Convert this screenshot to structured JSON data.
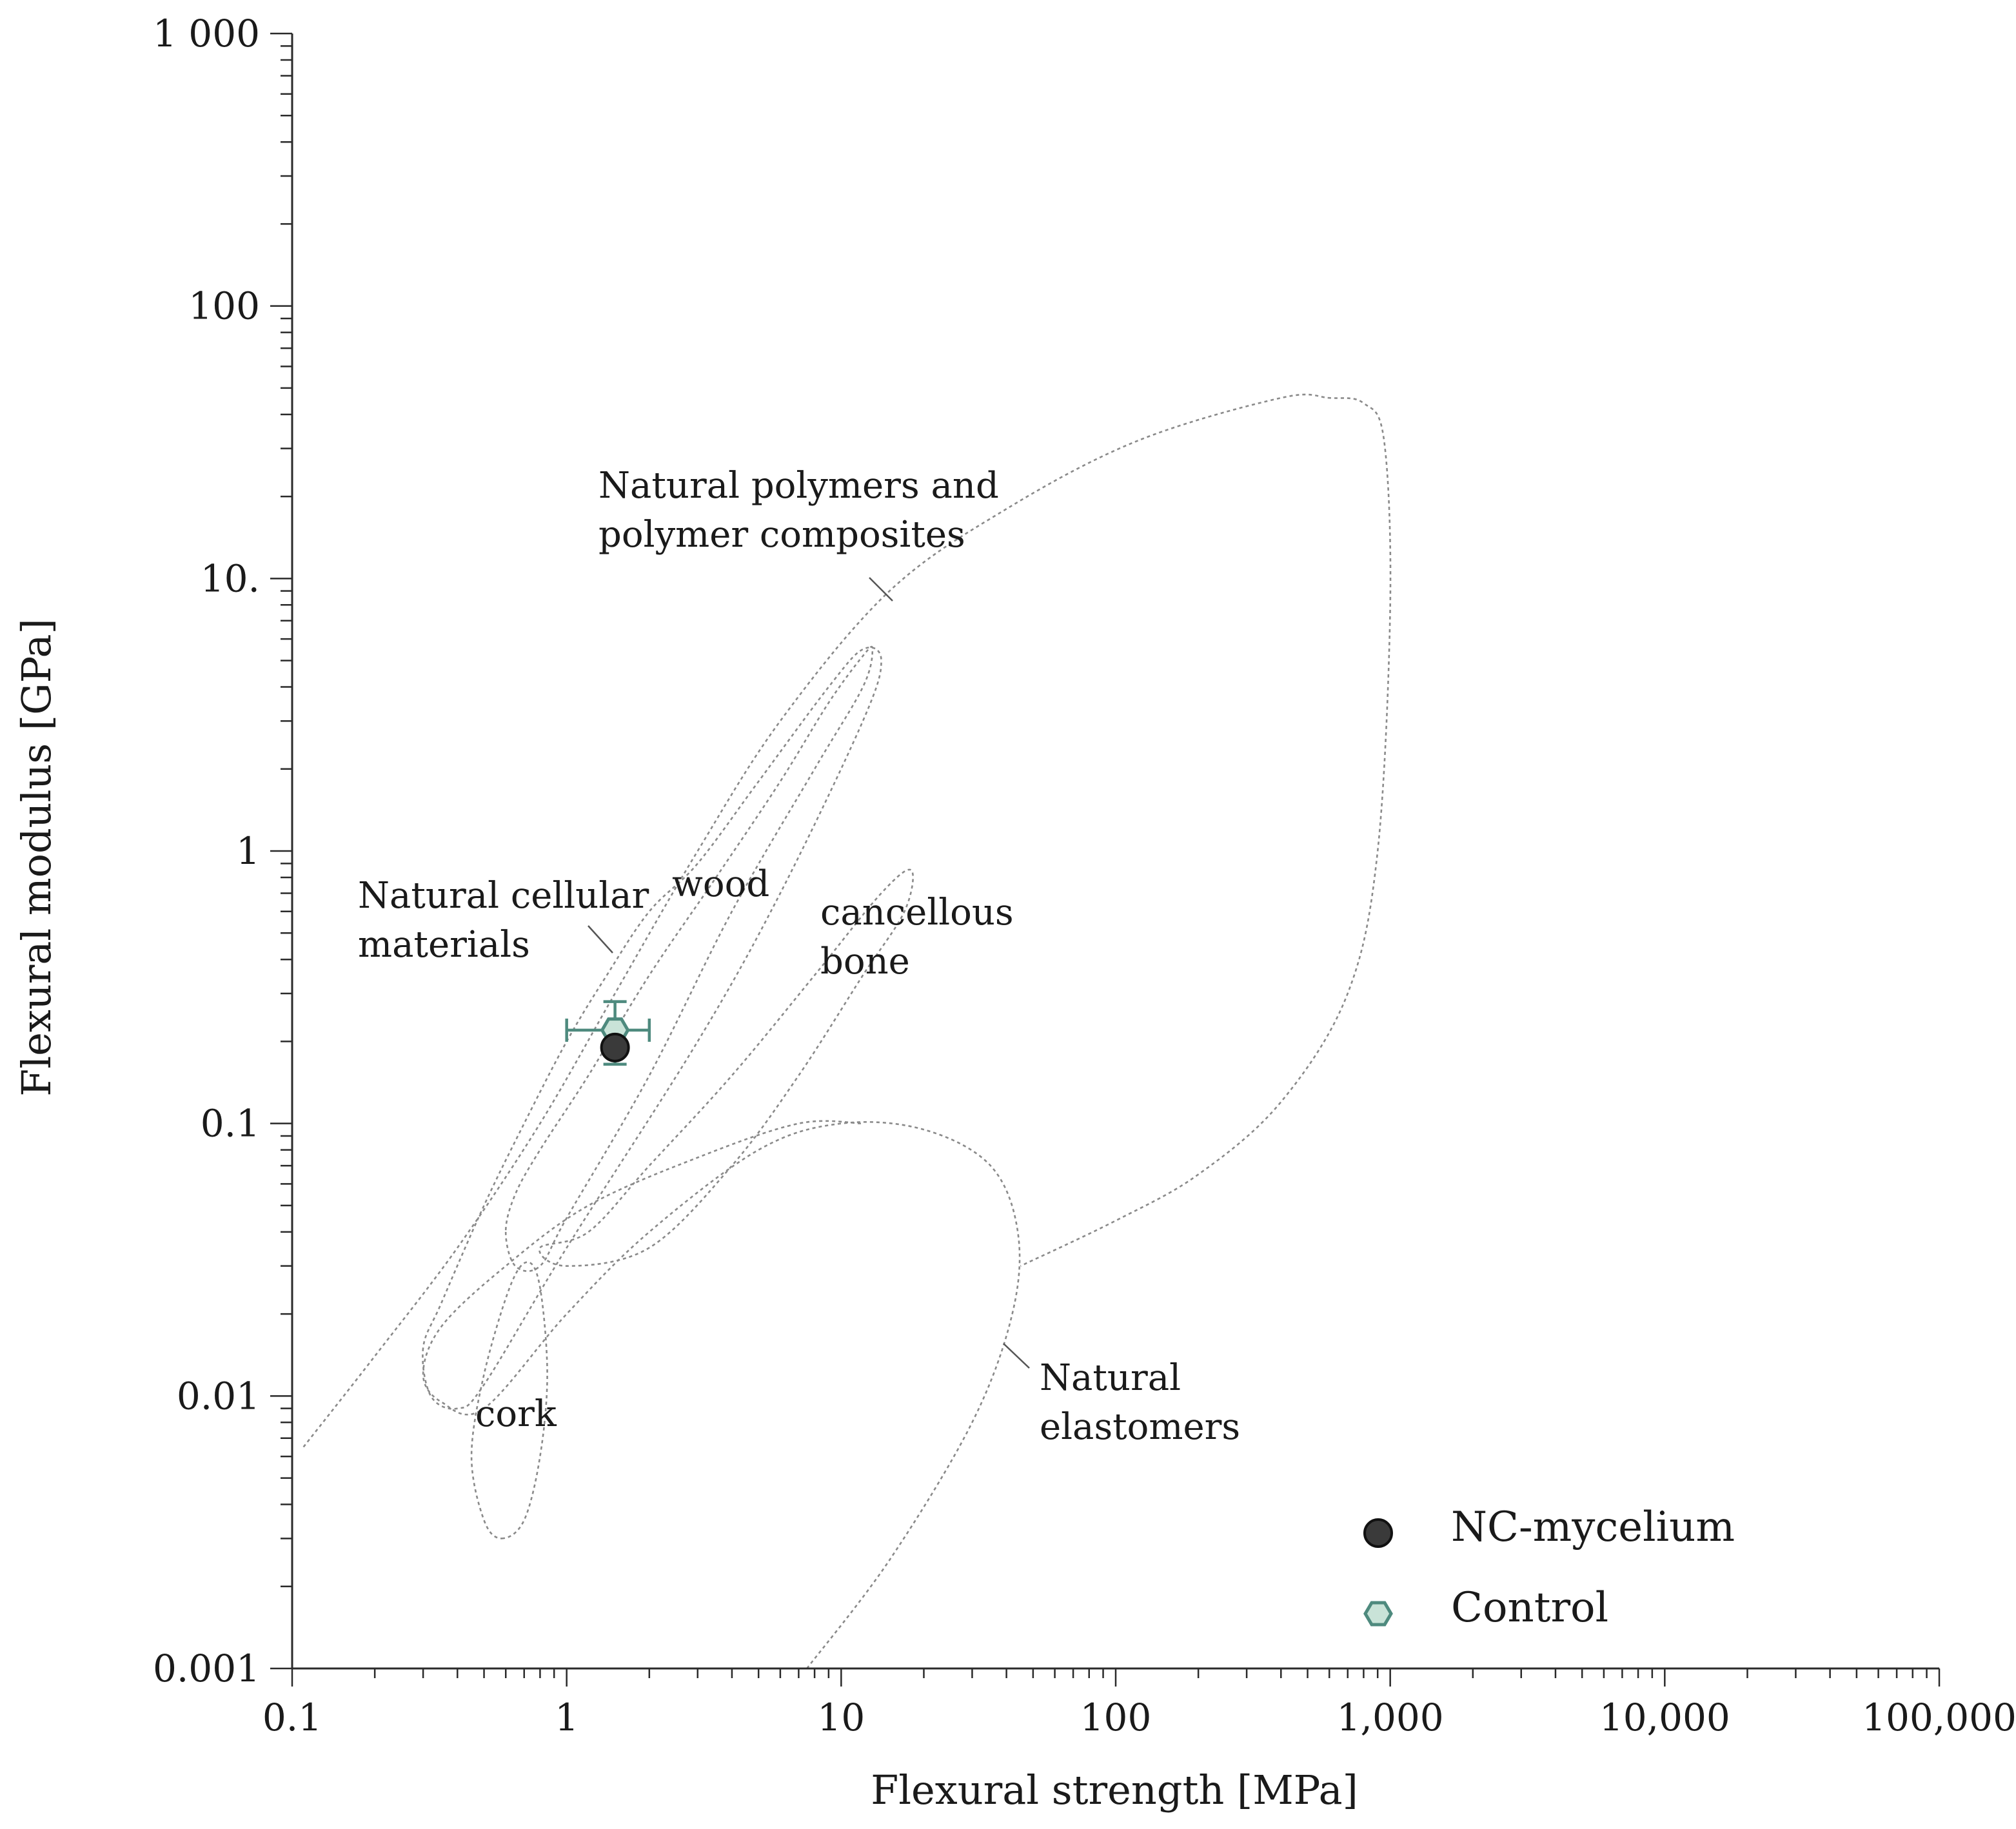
{
  "chart_data": {
    "type": "scatter",
    "xscale": "log",
    "yscale": "log",
    "xlabel": "Flexural strength [MPa]",
    "ylabel": "Flexural modulus [GPa]",
    "xlim": [
      0.1,
      100000
    ],
    "ylim": [
      0.001,
      1000
    ],
    "xticks": [
      {
        "value": 0.1,
        "label": "0.1"
      },
      {
        "value": 1,
        "label": "1"
      },
      {
        "value": 10,
        "label": "10"
      },
      {
        "value": 100,
        "label": "100"
      },
      {
        "value": 1000,
        "label": "1,000"
      },
      {
        "value": 10000,
        "label": "10,000"
      },
      {
        "value": 100000,
        "label": "100,000"
      }
    ],
    "yticks": [
      {
        "value": 0.001,
        "label": "0.001"
      },
      {
        "value": 0.01,
        "label": "0.01"
      },
      {
        "value": 0.1,
        "label": "0.1"
      },
      {
        "value": 1,
        "label": "1"
      },
      {
        "value": 10,
        "label": "10."
      },
      {
        "value": 100,
        "label": "100"
      },
      {
        "value": 1000,
        "label": "1 000"
      }
    ],
    "series": [
      {
        "name": "NC-mycelium",
        "marker": "circle",
        "color": "#3a3a3a",
        "points": [
          {
            "x": 1.5,
            "y": 0.19
          }
        ]
      },
      {
        "name": "Control",
        "marker": "hexagon",
        "color": "#c9e3d8",
        "edge": "#4e8a7e",
        "points": [
          {
            "x": 1.5,
            "y": 0.22,
            "x_err": [
              1.0,
              2.0
            ],
            "y_err": [
              0.165,
              0.28
            ]
          }
        ]
      }
    ],
    "regions": [
      {
        "id": "natural-polymers",
        "label": [
          "Natural polymers and",
          "polymer composites"
        ],
        "outline": [
          [
            0.11,
            0.0065
          ],
          [
            0.2,
            0.014
          ],
          [
            0.4,
            0.035
          ],
          [
            0.8,
            0.1
          ],
          [
            1.5,
            0.3
          ],
          [
            3,
            1
          ],
          [
            6,
            3
          ],
          [
            15,
            9
          ],
          [
            40,
            18
          ],
          [
            120,
            32
          ],
          [
            400,
            46
          ],
          [
            600,
            46
          ],
          [
            800,
            44
          ],
          [
            950,
            32
          ],
          [
            1000,
            8
          ],
          [
            900,
            1
          ],
          [
            700,
            0.3
          ],
          [
            400,
            0.12
          ],
          [
            200,
            0.065
          ],
          [
            100,
            0.044
          ],
          [
            45,
            0.03
          ]
        ]
      },
      {
        "id": "natural-cellular",
        "label": [
          "Natural cellular",
          "materials"
        ],
        "outline": [
          [
            0.3,
            0.015
          ],
          [
            0.32,
            0.01
          ],
          [
            0.4,
            0.009
          ],
          [
            0.5,
            0.011
          ],
          [
            1,
            0.035
          ],
          [
            3,
            0.2
          ],
          [
            6,
            0.7
          ],
          [
            12,
            3
          ],
          [
            14,
            5
          ],
          [
            12,
            5.5
          ],
          [
            9,
            4
          ],
          [
            5,
            1.8
          ],
          [
            3,
            0.9
          ],
          [
            2,
            0.6
          ],
          [
            1.4,
            0.35
          ],
          [
            1,
            0.2
          ],
          [
            0.7,
            0.1
          ],
          [
            0.5,
            0.05
          ],
          [
            0.35,
            0.022
          ]
        ]
      },
      {
        "id": "wood",
        "label": [
          "wood"
        ],
        "outline": [
          [
            0.6,
            0.04
          ],
          [
            0.65,
            0.03
          ],
          [
            0.8,
            0.03
          ],
          [
            1,
            0.045
          ],
          [
            2,
            0.15
          ],
          [
            4,
            0.6
          ],
          [
            8,
            2
          ],
          [
            12,
            4
          ],
          [
            13,
            5.5
          ],
          [
            12,
            5.2
          ],
          [
            9,
            3.5
          ],
          [
            6,
            1.8
          ],
          [
            3.5,
            0.8
          ],
          [
            2,
            0.35
          ],
          [
            1.2,
            0.15
          ],
          [
            0.8,
            0.08
          ],
          [
            0.65,
            0.055
          ]
        ]
      },
      {
        "id": "cancellous-bone",
        "label": [
          "cancellous",
          "bone"
        ],
        "outline": [
          [
            0.8,
            0.035
          ],
          [
            1.2,
            0.04
          ],
          [
            2,
            0.07
          ],
          [
            4,
            0.15
          ],
          [
            8,
            0.35
          ],
          [
            14,
            0.7
          ],
          [
            18,
            0.85
          ],
          [
            17,
            0.6
          ],
          [
            12,
            0.35
          ],
          [
            7,
            0.15
          ],
          [
            4,
            0.07
          ],
          [
            2,
            0.035
          ],
          [
            1,
            0.03
          ]
        ]
      },
      {
        "id": "natural-elastomers",
        "label": [
          "Natural",
          "elastomers"
        ],
        "outline": [
          [
            7.5,
            0.001
          ],
          [
            15,
            0.0025
          ],
          [
            30,
            0.008
          ],
          [
            42,
            0.02
          ],
          [
            44,
            0.04
          ],
          [
            35,
            0.07
          ],
          [
            20,
            0.095
          ],
          [
            10,
            0.1
          ],
          [
            5,
            0.08
          ],
          [
            2,
            0.04
          ],
          [
            1,
            0.02
          ],
          [
            0.5,
            0.009
          ],
          [
            0.35,
            0.0095
          ],
          [
            0.3,
            0.012
          ],
          [
            0.35,
            0.018
          ],
          [
            0.6,
            0.03
          ],
          [
            1.2,
            0.05
          ],
          [
            3,
            0.075
          ],
          [
            7,
            0.1
          ],
          [
            12,
            0.1
          ]
        ]
      },
      {
        "id": "cork",
        "label": [
          "cork"
        ],
        "outline": [
          [
            0.58,
            0.003
          ],
          [
            0.7,
            0.0035
          ],
          [
            0.8,
            0.006
          ],
          [
            0.85,
            0.012
          ],
          [
            0.8,
            0.025
          ],
          [
            0.72,
            0.031
          ],
          [
            0.62,
            0.025
          ],
          [
            0.5,
            0.012
          ],
          [
            0.45,
            0.006
          ],
          [
            0.5,
            0.0035
          ]
        ]
      }
    ],
    "legend_position": "bottom-right"
  }
}
